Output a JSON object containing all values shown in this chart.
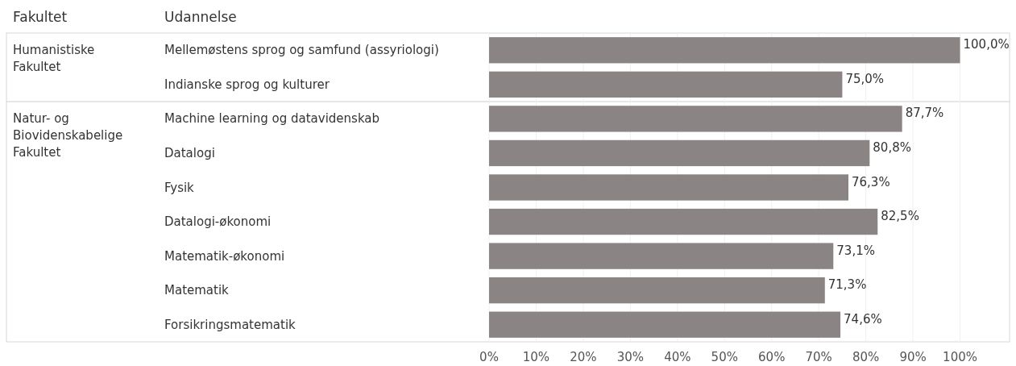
{
  "chart_data": {
    "type": "bar",
    "orientation": "horizontal",
    "ylabel": "Udannelse",
    "categories": [
      "Mellemøstens sprog og samfund (assyriologi)",
      "Indianske sprog og kulturer",
      "Machine learning og datavidenskab",
      "Datalogi",
      "Fysik",
      "Datalogi-økonomi",
      "Matematik-økonomi",
      "Matematik",
      "Forsikringsmatematik"
    ],
    "values": [
      100,
      75,
      87.7,
      80.8,
      76.3,
      82.5,
      73.1,
      71.3,
      74.6
    ],
    "value_labels": [
      "100,0%",
      "75,0%",
      "87,7%",
      "80,8%",
      "76,3%",
      "82,5%",
      "73,1%",
      "71,3%",
      "74,6%"
    ],
    "color": "#8a8584",
    "xlim": [
      0,
      110
    ],
    "xticks": [
      {
        "value": 0,
        "label": "0%"
      },
      {
        "value": 10,
        "label": "10%"
      },
      {
        "value": 20,
        "label": "20%"
      },
      {
        "value": 30,
        "label": "30%"
      },
      {
        "value": 40,
        "label": "40%"
      },
      {
        "value": 50,
        "label": "50%"
      },
      {
        "value": 60,
        "label": "60%"
      },
      {
        "value": 70,
        "label": "70%"
      },
      {
        "value": 80,
        "label": "80%"
      },
      {
        "value": 90,
        "label": "90%"
      },
      {
        "value": 100,
        "label": "100%"
      }
    ],
    "grid": "x",
    "annotations": [
      "Fakultet"
    ],
    "bands": [
      {
        "axis": "y",
        "from": "Mellemøstens sprog og samfund (assyriologi)",
        "to": "Indianske sprog og kulturer",
        "label": "Humanistiske Fakultet",
        "color": "#ffffff"
      },
      {
        "axis": "y",
        "from": "Machine learning og datavidenskab",
        "to": "Forsikringsmatematik",
        "label": "Natur- og Biovidenskabelige Fakultet",
        "color": "#ffffff"
      }
    ]
  }
}
